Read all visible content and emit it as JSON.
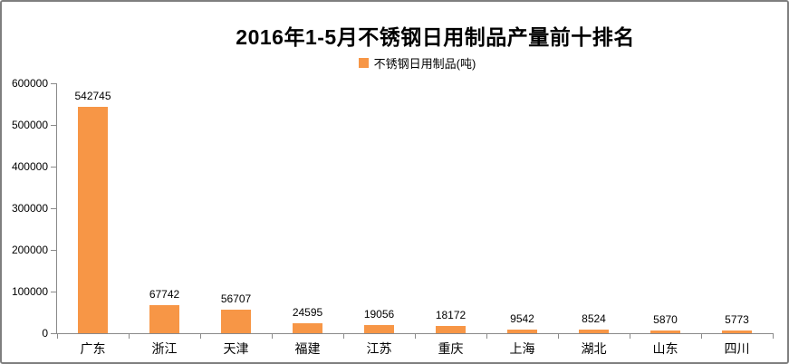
{
  "window": {
    "background": "#ffffff",
    "border_color": "#7f7f7f"
  },
  "chart_data": {
    "type": "bar",
    "title": "2016年1-5月不锈钢日用制品产量前十排名",
    "legend": {
      "position": "top",
      "items": [
        {
          "label": "不锈钢日用制品(吨)",
          "color": "#F79646"
        }
      ]
    },
    "categories": [
      "广东",
      "浙江",
      "天津",
      "福建",
      "江苏",
      "重庆",
      "上海",
      "湖北",
      "山东",
      "四川"
    ],
    "series": [
      {
        "name": "不锈钢日用制品(吨)",
        "color": "#F79646",
        "values": [
          542745,
          67742,
          56707,
          24595,
          19056,
          18172,
          9542,
          8524,
          5870,
          5773
        ]
      }
    ],
    "data_labels_visible": true,
    "xlabel": "",
    "ylabel": "",
    "ylim": [
      0,
      600000
    ],
    "ytick_step": 100000,
    "ytick_labels": [
      "0",
      "100000",
      "200000",
      "300000",
      "400000",
      "500000",
      "600000"
    ],
    "grid": false,
    "axis_color": "#8a8a8a",
    "text_color": "#000000"
  }
}
